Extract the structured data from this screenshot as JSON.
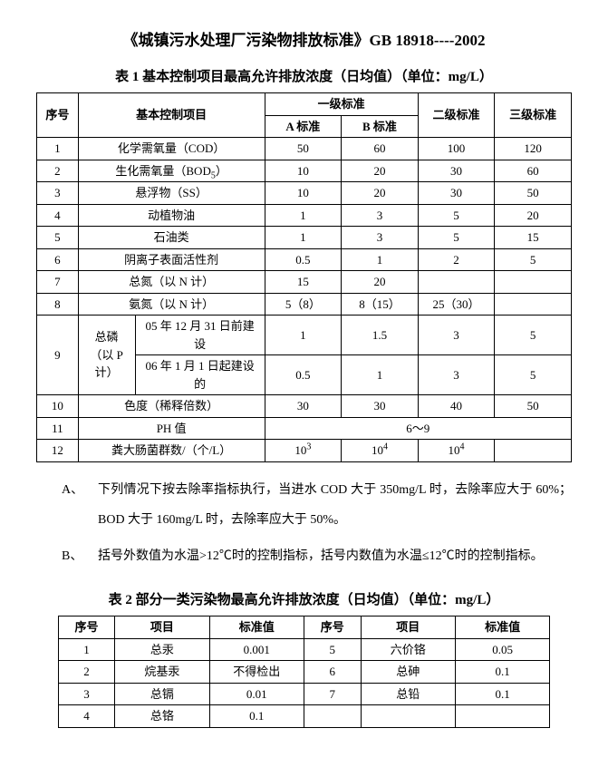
{
  "main_title": "《城镇污水处理厂污染物排放标准》GB 18918----2002",
  "table1": {
    "title": "表 1  基本控制项目最高允许排放浓度（日均值）（单位：mg/L）",
    "headers": {
      "serial": "序号",
      "item": "基本控制项目",
      "level1": "一级标准",
      "levelA": "A 标准",
      "levelB": "B 标准",
      "level2": "二级标准",
      "level3": "三级标准"
    },
    "rows": [
      {
        "n": "1",
        "item": "化学需氧量（COD）",
        "a": "50",
        "b": "60",
        "l2": "100",
        "l3": "120"
      },
      {
        "n": "2",
        "item": "生化需氧量（BOD₅）",
        "a": "10",
        "b": "20",
        "l2": "30",
        "l3": "60"
      },
      {
        "n": "3",
        "item": "悬浮物（SS）",
        "a": "10",
        "b": "20",
        "l2": "30",
        "l3": "50"
      },
      {
        "n": "4",
        "item": "动植物油",
        "a": "1",
        "b": "3",
        "l2": "5",
        "l3": "20"
      },
      {
        "n": "5",
        "item": "石油类",
        "a": "1",
        "b": "3",
        "l2": "5",
        "l3": "15"
      },
      {
        "n": "6",
        "item": "阴离子表面活性剂",
        "a": "0.5",
        "b": "1",
        "l2": "2",
        "l3": "5"
      },
      {
        "n": "7",
        "item": "总氮（以 N 计）",
        "a": "15",
        "b": "20",
        "l2": "",
        "l3": ""
      },
      {
        "n": "8",
        "item": "氨氮（以 N 计）",
        "a": "5（8）",
        "b": "8（15）",
        "l2": "25（30）",
        "l3": ""
      }
    ],
    "row9": {
      "n": "9",
      "group": "总磷（以 P 计）",
      "sub1": {
        "item": "05 年 12 月 31 日前建设",
        "a": "1",
        "b": "1.5",
        "l2": "3",
        "l3": "5"
      },
      "sub2": {
        "item": "06 年 1 月 1 日起建设的",
        "a": "0.5",
        "b": "1",
        "l2": "3",
        "l3": "5"
      }
    },
    "rows_after": [
      {
        "n": "10",
        "item": "色度（稀释倍数）",
        "a": "30",
        "b": "30",
        "l2": "40",
        "l3": "50"
      }
    ],
    "row11": {
      "n": "11",
      "item": "PH 值",
      "span": "6～9"
    },
    "row12": {
      "n": "12",
      "item": "粪大肠菌群数/（个/L）",
      "a": "10",
      "a_sup": "3",
      "b": "10",
      "b_sup": "4",
      "l2": "10",
      "l2_sup": "4",
      "l3": ""
    }
  },
  "notes": {
    "A_label": "A、",
    "A_text": "下列情况下按去除率指标执行，当进水 COD 大于 350mg/L 时，去除率应大于 60%；BOD 大于 160mg/L 时，去除率应大于 50%。",
    "B_label": "B、",
    "B_text": "括号外数值为水温>12℃时的控制指标，括号内数值为水温≤12℃时的控制指标。"
  },
  "table2": {
    "title": "表 2 部分一类污染物最高允许排放浓度（日均值）（单位：mg/L）",
    "headers": {
      "serial": "序号",
      "item": "项目",
      "value": "标准值"
    },
    "left": [
      {
        "n": "1",
        "item": "总汞",
        "v": "0.001"
      },
      {
        "n": "2",
        "item": "烷基汞",
        "v": "不得检出"
      },
      {
        "n": "3",
        "item": "总镉",
        "v": "0.01"
      },
      {
        "n": "4",
        "item": "总铬",
        "v": "0.1"
      }
    ],
    "right": [
      {
        "n": "5",
        "item": "六价铬",
        "v": "0.05"
      },
      {
        "n": "6",
        "item": "总砷",
        "v": "0.1"
      },
      {
        "n": "7",
        "item": "总铅",
        "v": "0.1"
      },
      {
        "n": "",
        "item": "",
        "v": ""
      }
    ]
  }
}
